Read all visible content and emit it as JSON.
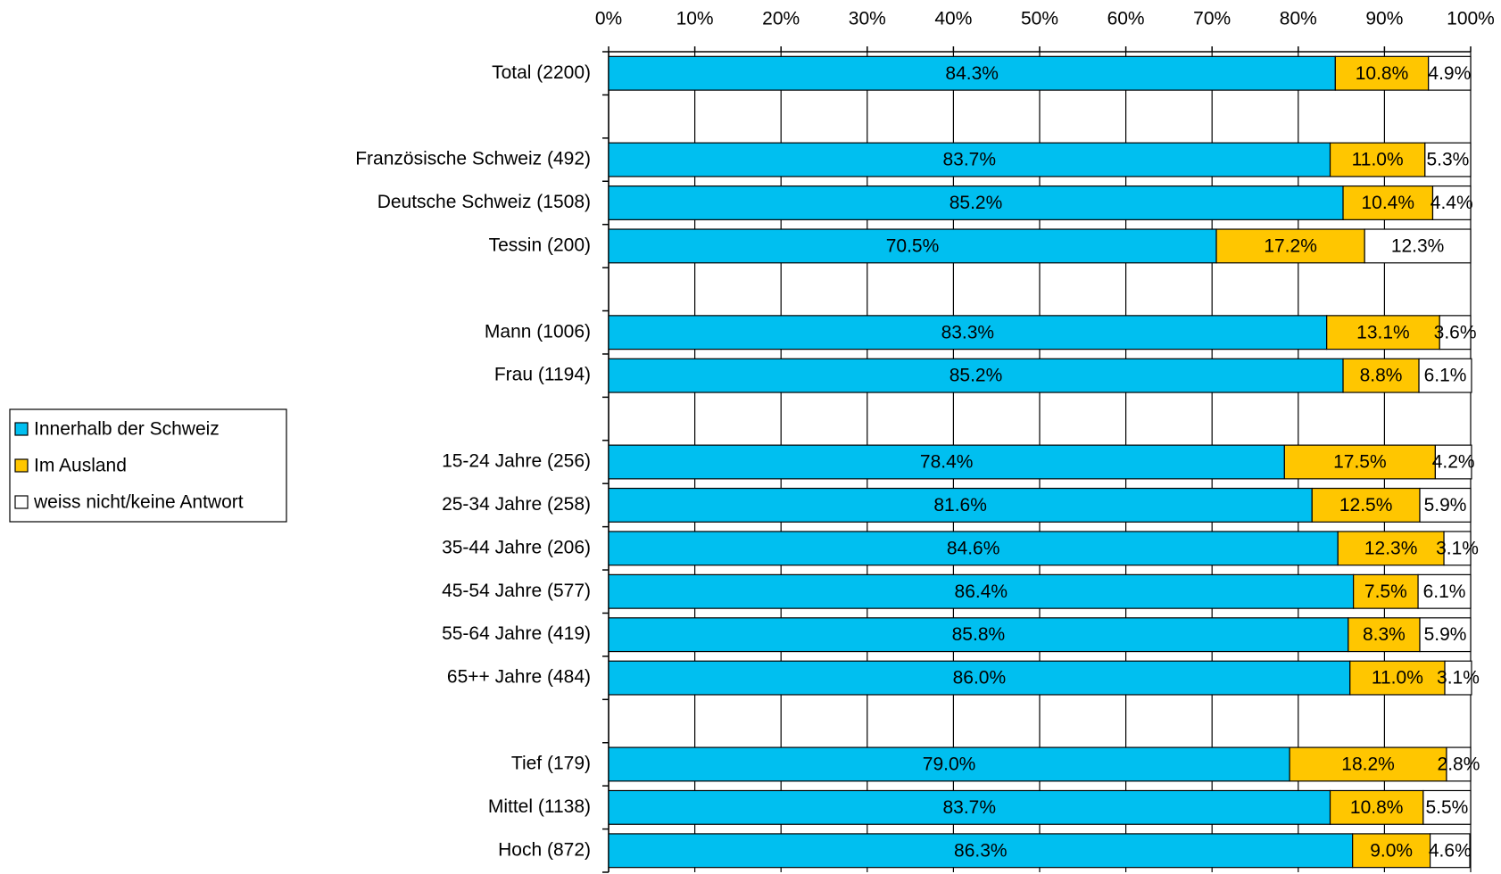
{
  "chart_data": {
    "type": "stacked-barh",
    "categories": [
      "Total (2200)",
      null,
      "Französische Schweiz (492)",
      "Deutsche Schweiz (1508)",
      "Tessin (200)",
      null,
      "Mann (1006)",
      "Frau (1194)",
      null,
      "15-24 Jahre (256)",
      "25-34 Jahre (258)",
      "35-44 Jahre (206)",
      "45-54 Jahre (577)",
      "55-64 Jahre (419)",
      "65++ Jahre (484)",
      null,
      "Tief (179)",
      "Mittel (1138)",
      "Hoch (872)"
    ],
    "series": [
      {
        "name": "Innerhalb der Schweiz",
        "color": "#00bff0",
        "values": [
          84.3,
          null,
          83.7,
          85.2,
          70.5,
          null,
          83.3,
          85.2,
          null,
          78.4,
          81.6,
          84.6,
          86.4,
          85.8,
          86.0,
          null,
          79.0,
          83.7,
          86.3
        ],
        "value_labels": [
          "84.3%",
          null,
          "83.7%",
          "85.2%",
          "70.5%",
          null,
          "83.3%",
          "85.2%",
          null,
          "78.4%",
          "81.6%",
          "84.6%",
          "86.4%",
          "85.8%",
          "86.0%",
          null,
          "79.0%",
          "83.7%",
          "86.3%"
        ]
      },
      {
        "name": "Im Ausland",
        "color": "#ffc600",
        "values": [
          10.8,
          null,
          11.0,
          10.4,
          17.2,
          null,
          13.1,
          8.8,
          null,
          17.5,
          12.5,
          12.3,
          7.5,
          8.3,
          11.0,
          null,
          18.2,
          10.8,
          9.0
        ],
        "value_labels": [
          "10.8%",
          null,
          "11.0%",
          "10.4%",
          "17.2%",
          null,
          "13.1%",
          "8.8%",
          null,
          "17.5%",
          "12.5%",
          "12.3%",
          "7.5%",
          "8.3%",
          "11.0%",
          null,
          "18.2%",
          "10.8%",
          "9.0%"
        ]
      },
      {
        "name": "weiss nicht/keine Antwort",
        "color": "#ffffff",
        "values": [
          4.9,
          null,
          5.3,
          4.4,
          12.3,
          null,
          3.6,
          6.1,
          null,
          4.2,
          5.9,
          3.1,
          6.1,
          5.9,
          3.1,
          null,
          2.8,
          5.5,
          4.6
        ],
        "value_labels": [
          "4.9%",
          null,
          "5.3%",
          "4.4%",
          "12.3%",
          null,
          "3.6%",
          "6.1%",
          null,
          "4.2%",
          "5.9%",
          "3.1%",
          "6.1%",
          "5.9%",
          "3.1%",
          null,
          "2.8%",
          "5.5%",
          "4.6%"
        ]
      }
    ],
    "xlim": [
      0,
      100
    ],
    "xticks": [
      {
        "value": 0,
        "label": "0%"
      },
      {
        "value": 10,
        "label": "10%"
      },
      {
        "value": 20,
        "label": "20%"
      },
      {
        "value": 30,
        "label": "30%"
      },
      {
        "value": 40,
        "label": "40%"
      },
      {
        "value": 50,
        "label": "50%"
      },
      {
        "value": 60,
        "label": "60%"
      },
      {
        "value": 70,
        "label": "70%"
      },
      {
        "value": 80,
        "label": "80%"
      },
      {
        "value": 90,
        "label": "90%"
      },
      {
        "value": 100,
        "label": "100%"
      }
    ],
    "grid": true,
    "legend": "left"
  }
}
